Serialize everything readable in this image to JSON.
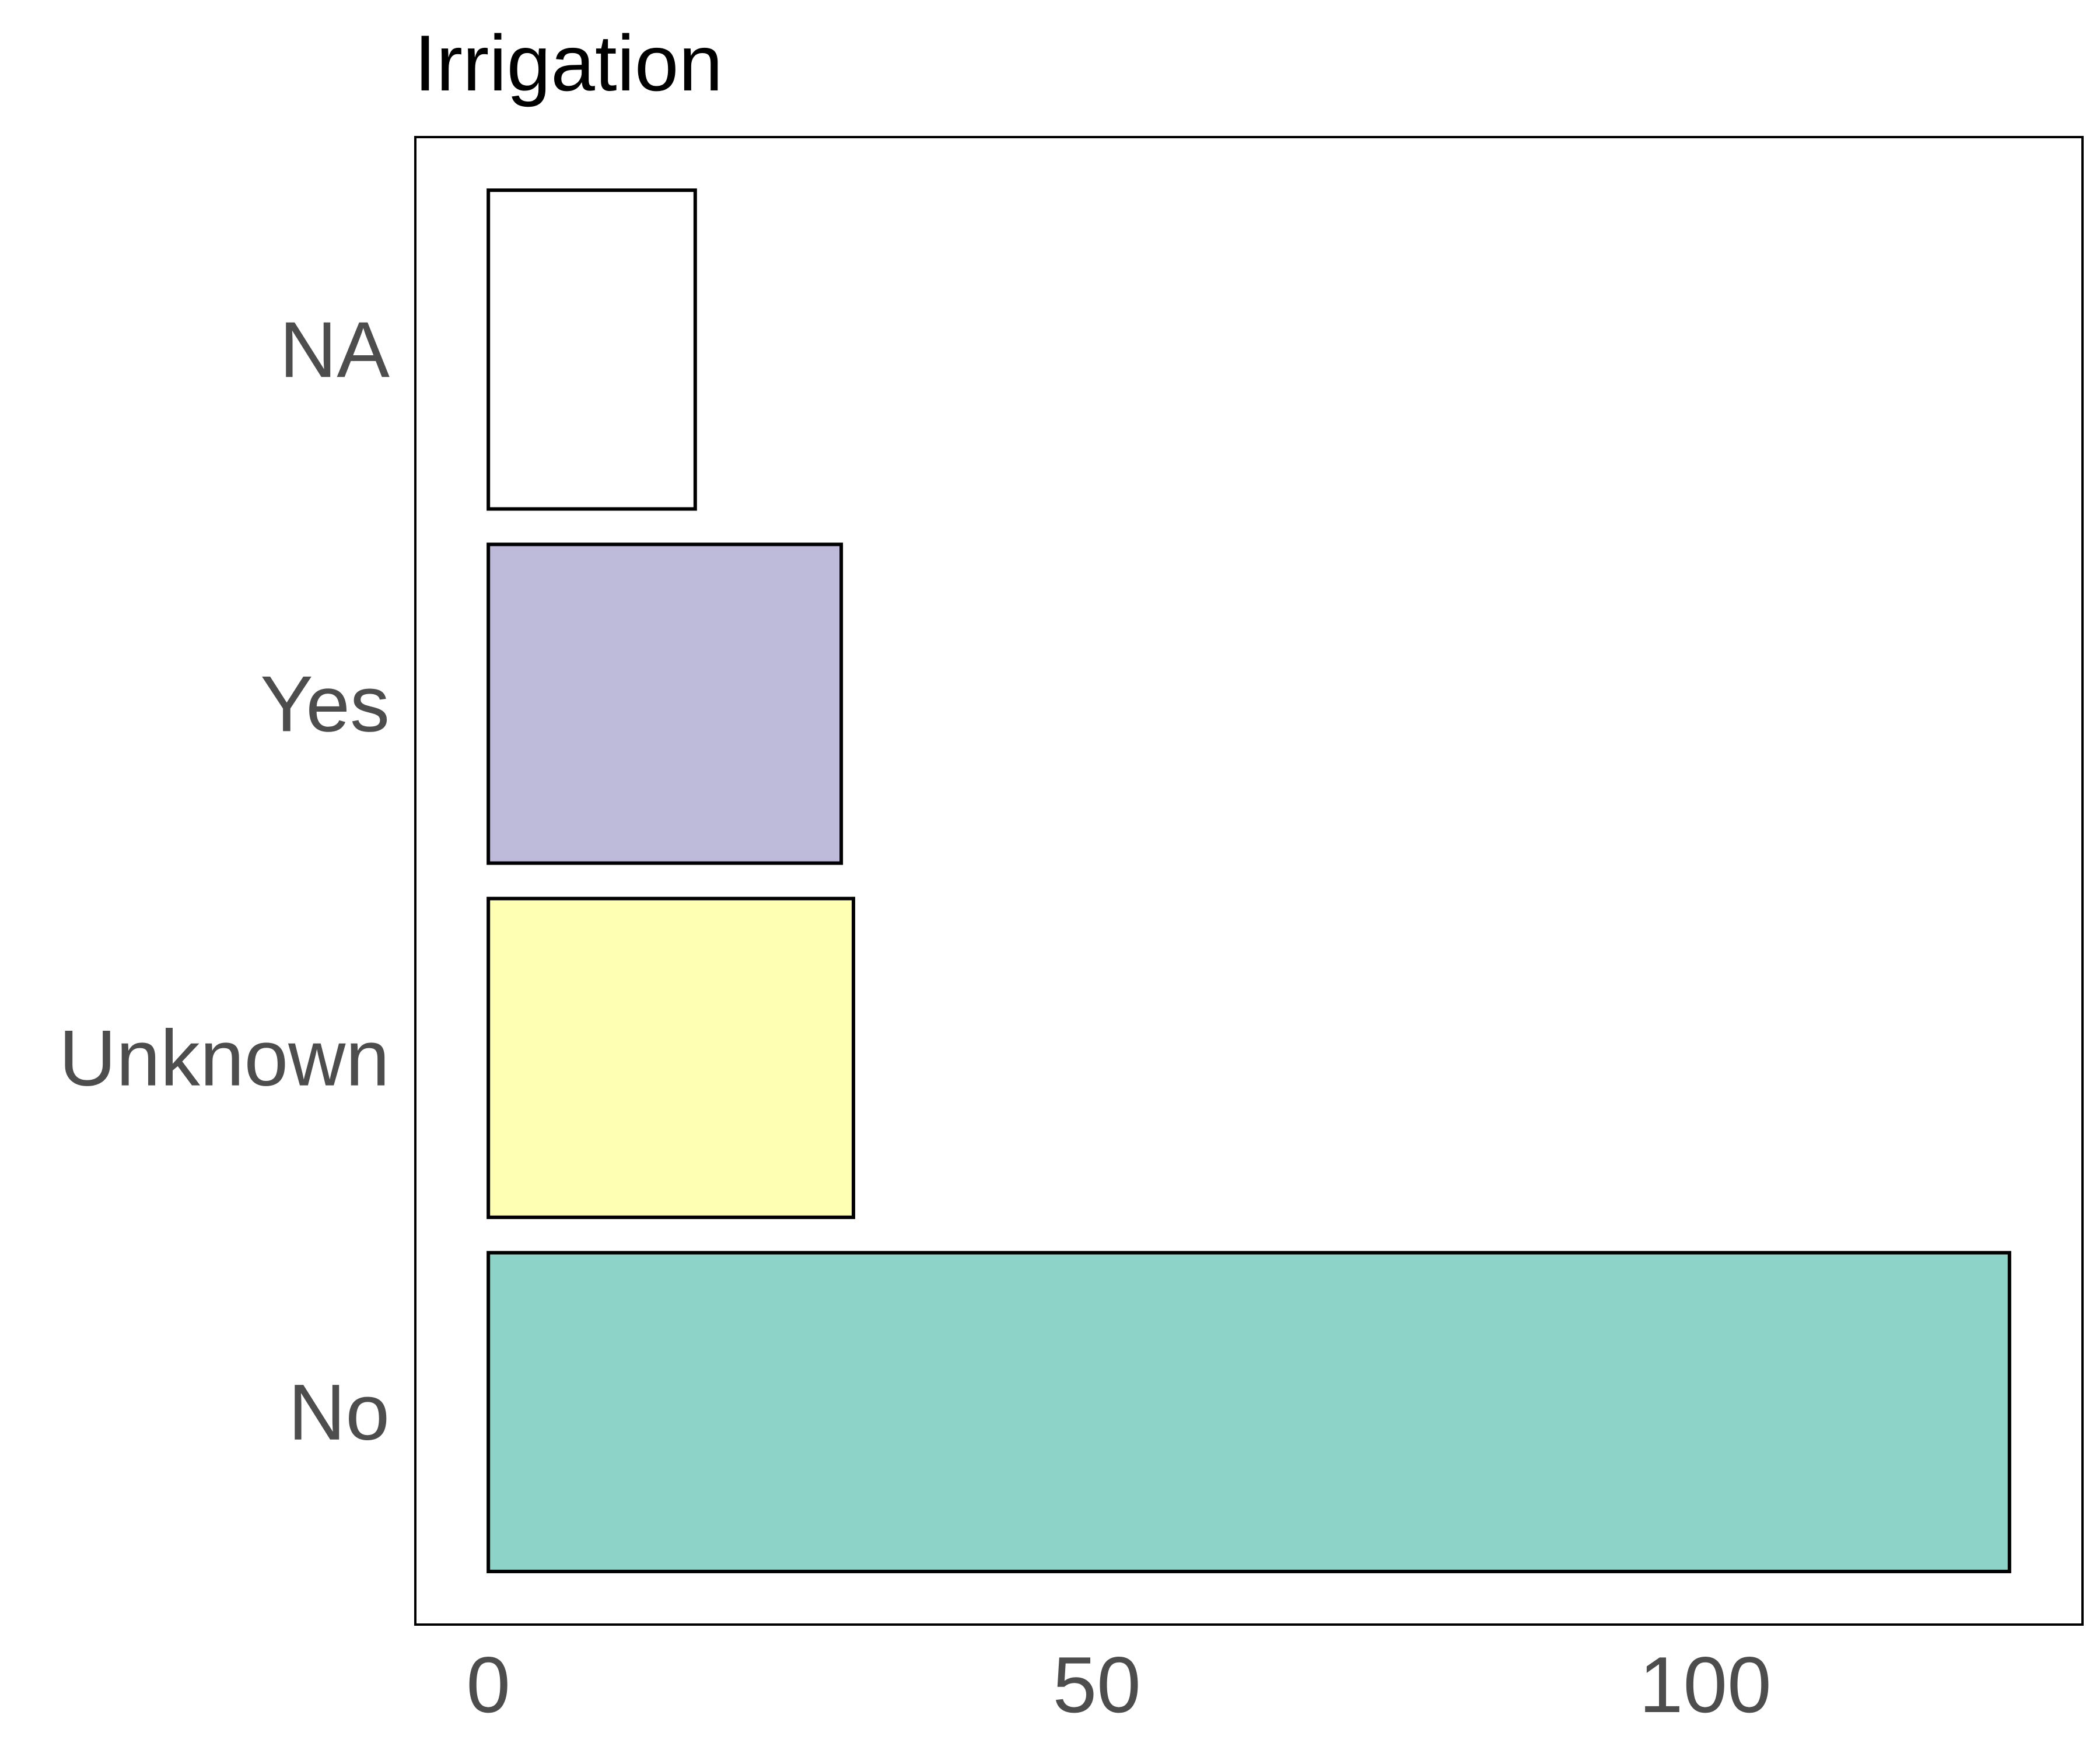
{
  "chart_data": {
    "type": "bar",
    "orientation": "horizontal",
    "title": "Irrigation",
    "xlabel": "",
    "ylabel": "",
    "categories": [
      "No",
      "Unknown",
      "Yes",
      "NA"
    ],
    "values": [
      125,
      30,
      29,
      17
    ],
    "colors": [
      "#8DD3C7",
      "#FFFFB3",
      "#BEBADA",
      "#FFFFFF"
    ],
    "xlim": [
      -6,
      131
    ],
    "xticks": [
      0,
      50,
      100
    ],
    "xtick_labels": [
      "0",
      "50",
      "100"
    ],
    "grid": false,
    "legend": "none"
  }
}
